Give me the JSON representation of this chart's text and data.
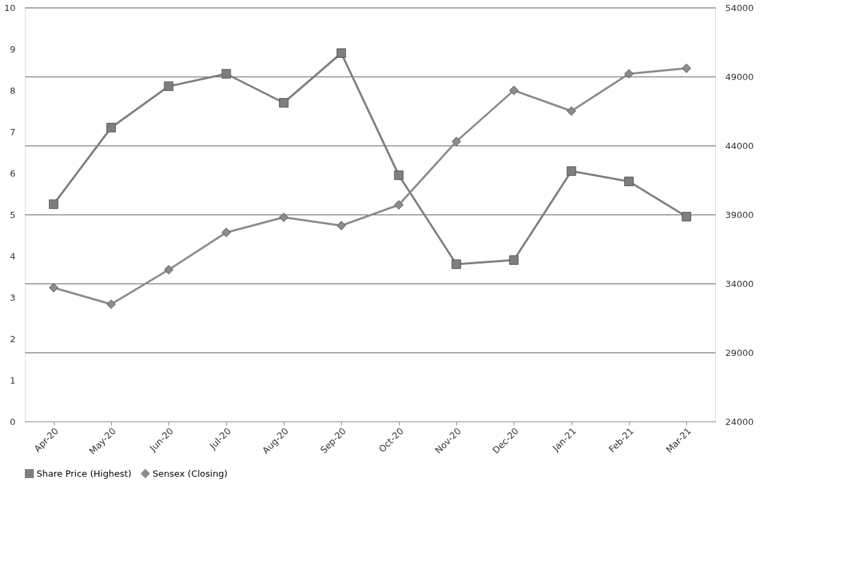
{
  "chart_data": {
    "type": "line",
    "categories": [
      "Apr-20",
      "May-20",
      "Jun-20",
      "Jul-20",
      "Aug-20",
      "Sep-20",
      "Oct-20",
      "Nov-20",
      "Dec-20",
      "Jan-21",
      "Feb-21",
      "Mar-21"
    ],
    "series": [
      {
        "name": "Share Price (Highest)",
        "color": "#7f7f7f",
        "marker": "square",
        "values": [
          5.25,
          7.1,
          8.1,
          8.4,
          7.7,
          8.9,
          5.95,
          3.8,
          3.9,
          6.05,
          5.8,
          4.95
        ]
      },
      {
        "name": "Sensex (Closing)",
        "color": "#8c8c8c",
        "marker": "diamond",
        "axis": "y2",
        "values": [
          33700,
          32500,
          35000,
          37700,
          38800,
          38200,
          39700,
          44300,
          48000,
          46500,
          49200,
          49600
        ]
      }
    ],
    "ylim": [
      0,
      10
    ],
    "yticks": [
      0,
      1,
      2,
      3,
      4,
      5,
      6,
      7,
      8,
      9,
      10
    ],
    "y2lim": [
      24000,
      54000
    ],
    "y2ticks": [
      24000,
      29000,
      34000,
      39000,
      44000,
      49000,
      54000
    ],
    "grid": "y2",
    "legend": "bottom",
    "line_style": "solid"
  }
}
